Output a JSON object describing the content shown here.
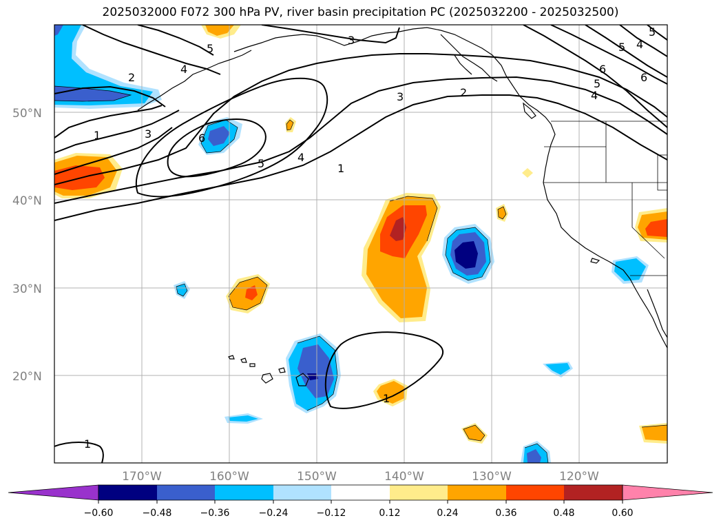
{
  "title": "2025032000 F072 300 hPa PV, river basin precipitation PC (2025032200 - 2025032500)",
  "map": {
    "lat_labels": [
      "50°N",
      "40°N",
      "30°N",
      "20°N"
    ],
    "lon_labels": [
      "170°W",
      "160°W",
      "150°W",
      "140°W",
      "130°W",
      "120°W"
    ],
    "gridlines": true
  },
  "colors": {
    "deep_blue": "#000080",
    "royal_blue": "#3a5fcd",
    "sky_blue": "#00bfff",
    "light_blue": "#b0e2ff",
    "light_yellow": "#ffec8b",
    "orange": "#ffa500",
    "orange_red": "#ff4500",
    "firebrick": "#b22222",
    "pink": "#ff82ab",
    "purple": "#9932cc",
    "contour": "#000000"
  },
  "colorbar": {
    "labels": [
      "−0.60",
      "−0.48",
      "−0.36",
      "−0.24",
      "−0.12",
      "0.12",
      "0.24",
      "0.36",
      "0.48",
      "0.60"
    ],
    "colors": [
      "#9932cc",
      "#000080",
      "#3a5fcd",
      "#00bfff",
      "#b0e2ff",
      "#ffffff",
      "#ffec8b",
      "#ffa500",
      "#ff4500",
      "#b22222",
      "#ff82ab"
    ]
  },
  "contour_labels": [
    "1",
    "2",
    "3",
    "4",
    "5",
    "6",
    "5",
    "3",
    "2",
    "1",
    "4",
    "5",
    "6",
    "3",
    "2",
    "1",
    "5",
    "4",
    "6",
    "5",
    "4",
    "1",
    "1"
  ]
}
